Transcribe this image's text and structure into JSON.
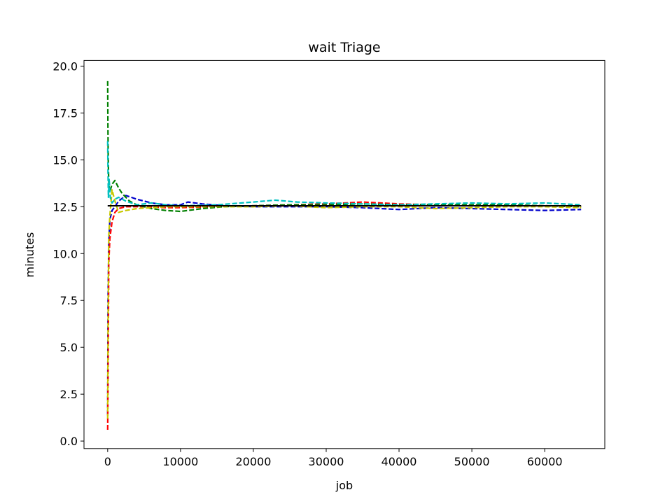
{
  "chart_data": {
    "type": "line",
    "title": "wait Triage",
    "xlabel": "job",
    "ylabel": "minutes",
    "xlim": [
      -3250,
      68250
    ],
    "ylim": [
      -0.4,
      20.3
    ],
    "xticks": [
      0,
      10000,
      20000,
      30000,
      40000,
      50000,
      60000
    ],
    "xtick_labels": [
      "0",
      "10000",
      "20000",
      "30000",
      "40000",
      "50000",
      "60000"
    ],
    "yticks": [
      0.0,
      2.5,
      5.0,
      7.5,
      10.0,
      12.5,
      15.0,
      17.5,
      20.0
    ],
    "ytick_labels": [
      "0.0",
      "2.5",
      "5.0",
      "7.5",
      "10.0",
      "12.5",
      "15.0",
      "17.5",
      "20.0"
    ],
    "grid": false,
    "reference_line": {
      "y": 12.55,
      "x_range": [
        0,
        65000
      ],
      "color": "#000000"
    },
    "series": [
      {
        "color": "#0000cc",
        "style": "dashed",
        "points": [
          [
            0,
            1.4
          ],
          [
            50,
            7.5
          ],
          [
            150,
            10.5
          ],
          [
            300,
            11.8
          ],
          [
            600,
            12.3
          ],
          [
            1000,
            12.5
          ],
          [
            1500,
            12.8
          ],
          [
            2500,
            13.1
          ],
          [
            4000,
            12.9
          ],
          [
            6000,
            12.7
          ],
          [
            8000,
            12.6
          ],
          [
            10000,
            12.6
          ],
          [
            11000,
            12.75
          ],
          [
            13000,
            12.65
          ],
          [
            16000,
            12.55
          ],
          [
            20000,
            12.5
          ],
          [
            25000,
            12.5
          ],
          [
            30000,
            12.5
          ],
          [
            35000,
            12.45
          ],
          [
            40000,
            12.35
          ],
          [
            45000,
            12.45
          ],
          [
            50000,
            12.4
          ],
          [
            55000,
            12.35
          ],
          [
            60000,
            12.3
          ],
          [
            65000,
            12.35
          ]
        ]
      },
      {
        "color": "#ff0000",
        "style": "dashed",
        "points": [
          [
            0,
            0.6
          ],
          [
            50,
            3.0
          ],
          [
            150,
            9.5
          ],
          [
            300,
            10.8
          ],
          [
            600,
            11.7
          ],
          [
            1000,
            12.2
          ],
          [
            1500,
            12.4
          ],
          [
            2500,
            12.5
          ],
          [
            5000,
            12.5
          ],
          [
            8000,
            12.45
          ],
          [
            10000,
            12.45
          ],
          [
            15000,
            12.5
          ],
          [
            20000,
            12.55
          ],
          [
            25000,
            12.6
          ],
          [
            30000,
            12.65
          ],
          [
            35000,
            12.75
          ],
          [
            40000,
            12.65
          ],
          [
            45000,
            12.6
          ],
          [
            50000,
            12.6
          ],
          [
            55000,
            12.55
          ],
          [
            60000,
            12.55
          ],
          [
            65000,
            12.5
          ]
        ]
      },
      {
        "color": "#008000",
        "style": "dashed",
        "points": [
          [
            0,
            19.2
          ],
          [
            30,
            17.0
          ],
          [
            80,
            15.0
          ],
          [
            150,
            13.7
          ],
          [
            300,
            13.3
          ],
          [
            600,
            13.7
          ],
          [
            1000,
            13.9
          ],
          [
            1500,
            13.5
          ],
          [
            2000,
            13.2
          ],
          [
            3000,
            12.8
          ],
          [
            4000,
            12.6
          ],
          [
            6000,
            12.4
          ],
          [
            8000,
            12.3
          ],
          [
            10000,
            12.25
          ],
          [
            13000,
            12.4
          ],
          [
            16000,
            12.5
          ],
          [
            20000,
            12.55
          ],
          [
            25000,
            12.6
          ],
          [
            30000,
            12.6
          ],
          [
            35000,
            12.65
          ],
          [
            40000,
            12.6
          ],
          [
            45000,
            12.6
          ],
          [
            50000,
            12.6
          ],
          [
            55000,
            12.6
          ],
          [
            60000,
            12.55
          ],
          [
            65000,
            12.5
          ]
        ]
      },
      {
        "color": "#c8c800",
        "style": "dashed",
        "points": [
          [
            0,
            1.2
          ],
          [
            50,
            6.0
          ],
          [
            150,
            11.0
          ],
          [
            300,
            12.0
          ],
          [
            600,
            13.4
          ],
          [
            1000,
            12.8
          ],
          [
            1500,
            12.2
          ],
          [
            2500,
            12.3
          ],
          [
            4000,
            12.4
          ],
          [
            6000,
            12.45
          ],
          [
            8000,
            12.5
          ],
          [
            10000,
            12.5
          ],
          [
            15000,
            12.5
          ],
          [
            20000,
            12.5
          ],
          [
            25000,
            12.55
          ],
          [
            30000,
            12.45
          ],
          [
            35000,
            12.5
          ],
          [
            40000,
            12.5
          ],
          [
            45000,
            12.4
          ],
          [
            50000,
            12.45
          ],
          [
            55000,
            12.5
          ],
          [
            60000,
            12.5
          ],
          [
            65000,
            12.45
          ]
        ]
      },
      {
        "color": "#00c0c0",
        "style": "dashed",
        "points": [
          [
            0,
            16.0
          ],
          [
            40,
            14.5
          ],
          [
            100,
            13.0
          ],
          [
            200,
            14.0
          ],
          [
            350,
            13.0
          ],
          [
            600,
            12.7
          ],
          [
            1000,
            12.9
          ],
          [
            1500,
            13.0
          ],
          [
            2500,
            12.8
          ],
          [
            4000,
            12.6
          ],
          [
            6000,
            12.7
          ],
          [
            8000,
            12.6
          ],
          [
            10000,
            12.55
          ],
          [
            15000,
            12.6
          ],
          [
            20000,
            12.75
          ],
          [
            23000,
            12.85
          ],
          [
            26000,
            12.75
          ],
          [
            30000,
            12.7
          ],
          [
            35000,
            12.65
          ],
          [
            40000,
            12.6
          ],
          [
            45000,
            12.65
          ],
          [
            50000,
            12.7
          ],
          [
            55000,
            12.65
          ],
          [
            60000,
            12.7
          ],
          [
            65000,
            12.6
          ]
        ]
      }
    ]
  }
}
